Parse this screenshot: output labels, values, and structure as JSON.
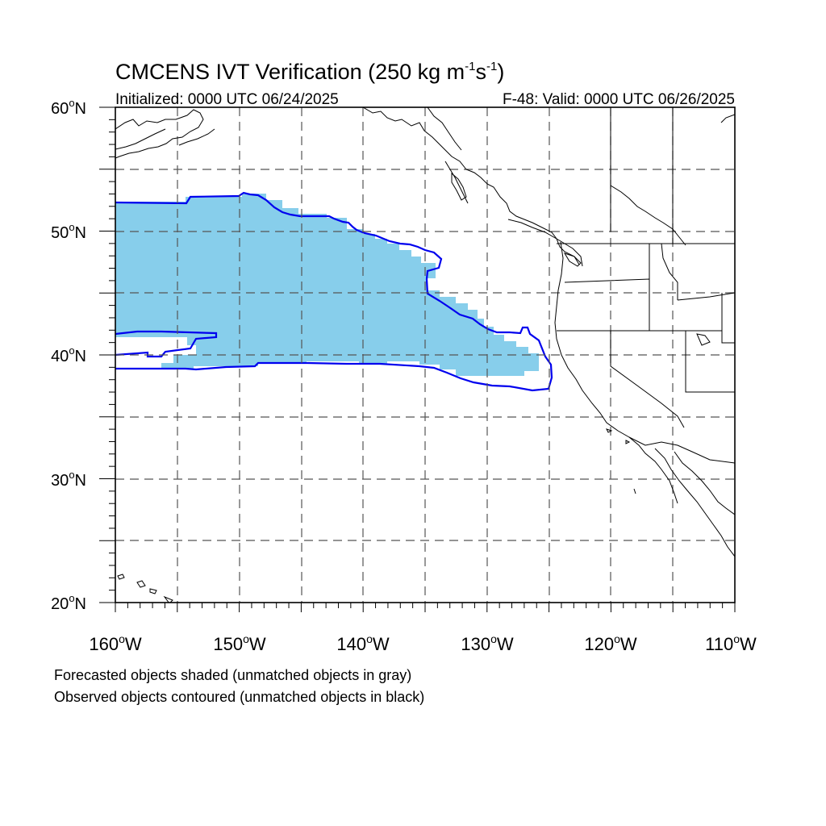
{
  "figure": {
    "title_main": "CMCENS IVT Verification (250 kg m",
    "title_exp1": "-1",
    "title_mid": "s",
    "title_exp2": "-1",
    "title_end": ")",
    "init_text": "Initialized: 0000 UTC 06/24/2025",
    "valid_text": "F-48: Valid: 0000 UTC 06/26/2025",
    "footnote_1": "Forecasted objects shaded (unmatched objects in gray)",
    "footnote_2": "Observed objects contoured (unmatched objects in black)"
  },
  "map": {
    "lon_range": [
      -160,
      -110
    ],
    "lat_range": [
      20,
      60
    ],
    "grid": "dashed every 5 degrees",
    "lon_labels": [
      {
        "deg": "160",
        "hemi": "W"
      },
      {
        "deg": "150",
        "hemi": "W"
      },
      {
        "deg": "140",
        "hemi": "W"
      },
      {
        "deg": "130",
        "hemi": "W"
      },
      {
        "deg": "120",
        "hemi": "W"
      },
      {
        "deg": "110",
        "hemi": "W"
      }
    ],
    "lat_labels": [
      {
        "deg": "60",
        "hemi": "N"
      },
      {
        "deg": "50",
        "hemi": "N"
      },
      {
        "deg": "40",
        "hemi": "N"
      },
      {
        "deg": "30",
        "hemi": "N"
      },
      {
        "deg": "20",
        "hemi": "N"
      }
    ],
    "colors": {
      "forecast_fill": "#87ceeb",
      "observed_contour": "#0000ee",
      "coastline": "#000000",
      "grid": "#555555"
    }
  }
}
